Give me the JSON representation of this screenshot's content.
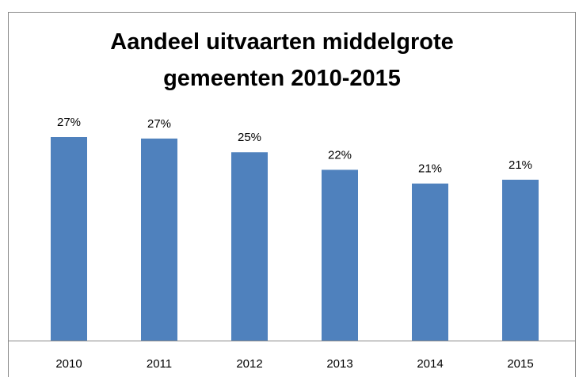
{
  "chart_data": {
    "type": "bar",
    "title": "Aandeel uitvaarten middelgrote gemeenten 2010-2015",
    "categories": [
      "2010",
      "2011",
      "2012",
      "2013",
      "2014",
      "2015"
    ],
    "values": [
      26.7,
      26.5,
      24.7,
      22.4,
      20.6,
      21.1
    ],
    "value_labels": [
      "27%",
      "27%",
      "25%",
      "22%",
      "21%",
      "21%"
    ],
    "color": "#4f81bd"
  }
}
